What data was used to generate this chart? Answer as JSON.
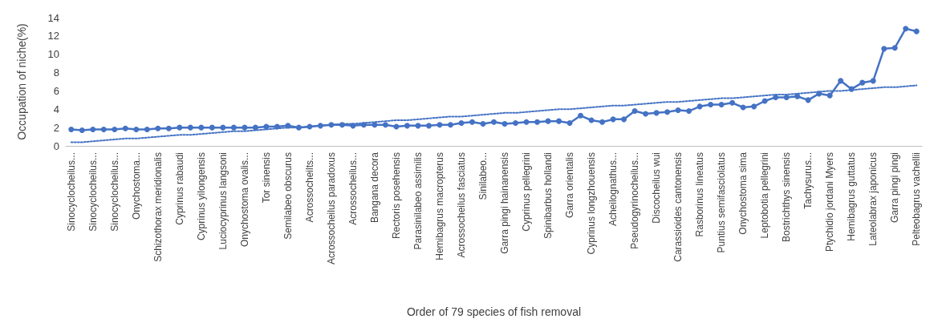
{
  "chart_data": {
    "type": "line",
    "xlabel": "Order of 79 species of fish removal",
    "ylabel": "Occupation of niche(%)",
    "categories": [
      "Sinocyclocheilus...",
      null,
      "Sinocyclocheilus...",
      null,
      "Sinocyclocheilus...",
      null,
      "Onychostoma...",
      null,
      "Schizothorax meridionalis",
      null,
      "Cyprinus rabaudi",
      null,
      "Cyprinus yilongensis",
      null,
      "Luciocyprinus langsoni",
      null,
      "Onychostoma ovalis...",
      null,
      "Tor sinensis",
      null,
      "Semilabeo obscurus",
      null,
      "Acrossocheilts...",
      null,
      "Acrossocheilus paradoxus",
      null,
      "Acrossocheilus...",
      null,
      "Bangana decora",
      null,
      "Rectoris posehensis",
      null,
      "Parasinilabeo assimilis",
      null,
      "Hemibagrus macropterus",
      null,
      "Acrossocheilus fasciatus",
      null,
      "Sinilabeo...",
      null,
      "Garra pingi hainanensis",
      null,
      "Cyprinus pellegrini",
      null,
      "Spinibarbus hollandi",
      null,
      "Garra orientalis",
      null,
      "Cyprinus longzhouensis",
      null,
      "Acheilognathus...",
      null,
      "Pseudogyrinocheilus...",
      null,
      "Discocheilus wui",
      null,
      "Carassioides cantonensis",
      null,
      "Rasborinus lineatus",
      null,
      "Puntius semifasciolatus",
      null,
      "Onychostoma sima",
      null,
      "Leptobotia pellegrini",
      null,
      "Bostrichthys sinensis",
      null,
      "Tachysurus...",
      null,
      "Ptychidio jordani Myers",
      null,
      "Hemibagrus guttatus",
      null,
      "Lateolabrax japonicus",
      null,
      "Garra pingi pingi",
      null,
      "Pelteobagrus vachellii"
    ],
    "series": [
      {
        "color": "#4472c4",
        "marker": "circle",
        "line_style": "solid",
        "values": [
          1.8,
          1.7,
          1.8,
          1.8,
          1.8,
          1.9,
          1.8,
          1.8,
          1.9,
          1.9,
          2.0,
          2.0,
          2.0,
          2.0,
          2.0,
          2.0,
          2.0,
          2.0,
          2.1,
          2.1,
          2.2,
          2.0,
          2.1,
          2.2,
          2.3,
          2.3,
          2.2,
          2.3,
          2.3,
          2.3,
          2.1,
          2.2,
          2.2,
          2.2,
          2.3,
          2.3,
          2.5,
          2.6,
          2.4,
          2.6,
          2.4,
          2.5,
          2.6,
          2.6,
          2.7,
          2.7,
          2.5,
          3.3,
          2.8,
          2.6,
          2.9,
          2.9,
          3.8,
          3.5,
          3.6,
          3.7,
          3.9,
          3.8,
          4.3,
          4.5,
          4.5,
          4.7,
          4.2,
          4.3,
          4.9,
          5.3,
          5.3,
          5.4,
          5.0,
          5.7,
          5.5,
          7.1,
          6.2,
          6.9,
          7.1,
          10.6,
          10.7,
          12.8,
          12.5
        ]
      },
      {
        "color": "#4472c4",
        "marker": "none",
        "line_style": "dotted",
        "values": [
          0.4,
          0.4,
          0.5,
          0.6,
          0.7,
          0.8,
          0.8,
          0.9,
          1.0,
          1.1,
          1.2,
          1.2,
          1.3,
          1.4,
          1.5,
          1.6,
          1.6,
          1.7,
          1.8,
          1.9,
          2.0,
          2.0,
          2.1,
          2.2,
          2.3,
          2.4,
          2.4,
          2.5,
          2.6,
          2.7,
          2.8,
          2.8,
          2.9,
          3.0,
          3.1,
          3.2,
          3.2,
          3.3,
          3.4,
          3.5,
          3.6,
          3.6,
          3.7,
          3.8,
          3.9,
          4.0,
          4.0,
          4.1,
          4.2,
          4.3,
          4.4,
          4.4,
          4.5,
          4.6,
          4.7,
          4.8,
          4.8,
          4.9,
          5.0,
          5.1,
          5.2,
          5.2,
          5.3,
          5.4,
          5.5,
          5.6,
          5.6,
          5.7,
          5.8,
          5.9,
          6.0,
          6.0,
          6.1,
          6.2,
          6.3,
          6.4,
          6.4,
          6.5,
          6.6
        ]
      }
    ],
    "ylim": [
      0,
      14
    ],
    "yticks": [
      0,
      2,
      4,
      6,
      8,
      10,
      12,
      14
    ],
    "grid": false
  }
}
